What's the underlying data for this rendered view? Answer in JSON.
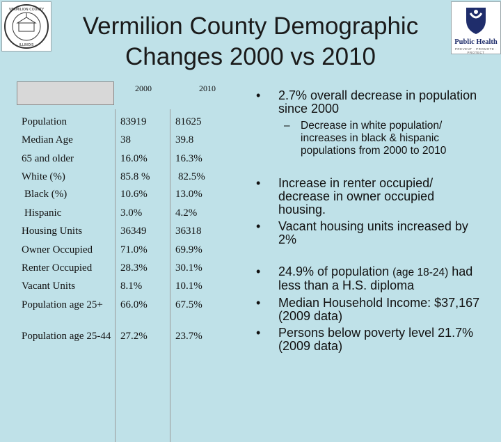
{
  "title": "Vermilion County Demographic Changes 2000 vs 2010",
  "seal": {
    "top_text": "VERMILION COUNTY",
    "bottom_text": "ILLINOIS"
  },
  "logo": {
    "name": "Public Health",
    "tagline": "PREVENT · PROMOTE · PROTECT"
  },
  "table": {
    "columns": [
      "2000",
      "2010"
    ],
    "rows": [
      {
        "label": "Population",
        "v2000": "83919",
        "v2010": "81625"
      },
      {
        "label": "Median Age",
        "v2000": "38",
        "v2010": "39.8"
      },
      {
        "label": "65 and older",
        "v2000": "16.0%",
        "v2010": "16.3%"
      },
      {
        "label": "White (%)",
        "v2000": "85.8 %",
        "v2010": "82.5%"
      },
      {
        "label": "Black (%)",
        "v2000": "10.6%",
        "v2010": "13.0%"
      },
      {
        "label": "Hispanic",
        "v2000": "3.0%",
        "v2010": "4.2%"
      },
      {
        "label": "Housing Units",
        "v2000": "36349",
        "v2010": "36318"
      },
      {
        "label": "Owner Occupied",
        "v2000": "71.0%",
        "v2010": "69.9%"
      },
      {
        "label": "Renter Occupied",
        "v2000": "28.3%",
        "v2010": "30.1%"
      },
      {
        "label": "Vacant Units",
        "v2000": "8.1%",
        "v2010": "10.1%"
      },
      {
        "label": "Population age 25+",
        "v2000": "66.0%",
        "v2010": "67.5%"
      },
      {
        "label": "Population age 25-44",
        "v2000": "27.2%",
        "v2010": "23.7%"
      }
    ]
  },
  "bullets": {
    "b1": "2.7% overall decrease in population since 2000",
    "b1_sub": "Decrease in white population/ increases in black & hispanic populations from 2000 to 2010",
    "b2": "Increase in renter occupied/ decrease in owner occupied housing.",
    "b3": "Vacant housing units increased by 2%",
    "b4_main": "24.9% of population ",
    "b4_small": "(age 18-24)",
    "b4_rest": " had less than a H.S. diploma",
    "b5": "Median Household Income: $37,167 (2009 data)",
    "b6": "Persons below poverty level 21.7% (2009 data)"
  }
}
